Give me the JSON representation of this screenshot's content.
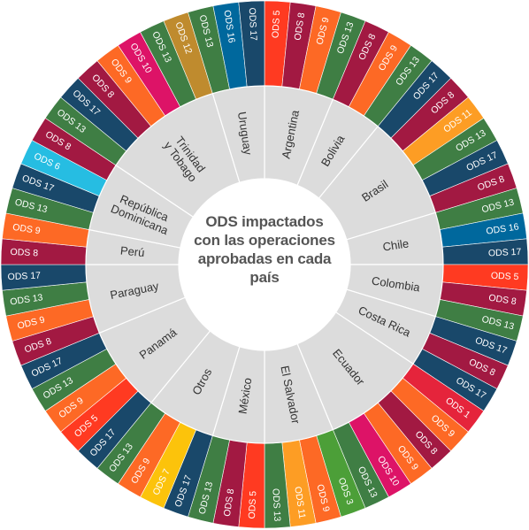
{
  "title_lines": [
    "ODS impactados",
    "con las operaciones",
    "aprobadas en cada",
    "país"
  ],
  "colors": {
    "ods1": "#e5243b",
    "ods3": "#4c9f38",
    "ods5": "#ff3a21",
    "ods6": "#26bde2",
    "ods7": "#fcc30b",
    "ods8": "#a21942",
    "ods9": "#fd6925",
    "ods10": "#dd1367",
    "ods11": "#fd9d24",
    "ods12": "#bf8b2e",
    "ods13": "#3f7e44",
    "ods16": "#00689d",
    "ods17": "#19486a",
    "country_ring": "#dcdcdc",
    "country_text": "#333333",
    "center_text": "#555555"
  },
  "countries": [
    {
      "name": "Argentina",
      "ods": [
        "ODS 5",
        "ODS 8",
        "ODS 9",
        "ODS 13"
      ]
    },
    {
      "name": "Bolivia",
      "ods": [
        "ODS 8",
        "ODS 9",
        "ODS 13"
      ]
    },
    {
      "name": "Brasil",
      "ods": [
        "ODS 17",
        "ODS 8",
        "ODS 11",
        "ODS 13",
        "ODS 17",
        "ODS 8"
      ]
    },
    {
      "name": "Chile",
      "ods": [
        "ODS 13",
        "ODS 16",
        "ODS 17"
      ]
    },
    {
      "name": "Colombia",
      "ods": [
        "ODS 5",
        "ODS 8",
        "ODS 13"
      ]
    },
    {
      "name": "Costa Rica",
      "ods": [
        "ODS 17",
        "ODS 8",
        "ODS 17"
      ]
    },
    {
      "name": "Ecuador",
      "ods": [
        "ODS 1",
        "ODS 9",
        "ODS 8",
        "ODS 9",
        "ODS 10",
        "ODS 13"
      ]
    },
    {
      "name": "El Salvador",
      "ods": [
        "ODS 3",
        "ODS 9",
        "ODS 11",
        "ODS 13"
      ]
    },
    {
      "name": "México",
      "ods": [
        "ODS 5",
        "ODS 8",
        "ODS 13"
      ]
    },
    {
      "name": "Otros",
      "ods": [
        "ODS 17",
        "ODS 7",
        "ODS 9",
        "ODS 13"
      ]
    },
    {
      "name": "Panamá",
      "ods": [
        "ODS 17",
        "ODS 5",
        "ODS 9",
        "ODS 13",
        "ODS 17"
      ]
    },
    {
      "name": "Paraguay",
      "ods": [
        "ODS 8",
        "ODS 9",
        "ODS 13",
        "ODS 17"
      ]
    },
    {
      "name": "Perú",
      "ods": [
        "ODS 8",
        "ODS 9"
      ]
    },
    {
      "name": "República Dominicana",
      "name_lines": [
        "República",
        "Dominicana"
      ],
      "ods": [
        "ODS 13",
        "ODS 17",
        "ODS 6",
        "ODS 8"
      ]
    },
    {
      "name": "Trinidad y Tobago",
      "name_lines": [
        "Trinidad",
        "y Tobago"
      ],
      "ods": [
        "ODS 13",
        "ODS 17",
        "ODS 8",
        "ODS 9",
        "ODS 10",
        "ODS 13",
        "ODS 12"
      ]
    },
    {
      "name": "Uruguay",
      "ods": [
        "ODS 13",
        "ODS 16",
        "ODS 17"
      ]
    }
  ]
}
